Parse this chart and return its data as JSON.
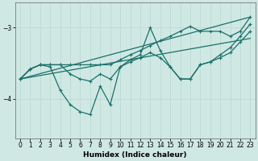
{
  "xlabel": "Humidex (Indice chaleur)",
  "background_color": "#cfe8e4",
  "grid_color": "#b8d8d2",
  "line_color": "#1a7068",
  "xlim": [
    -0.5,
    23.5
  ],
  "ylim": [
    -4.55,
    -2.65
  ],
  "yticks": [
    -4,
    -3
  ],
  "xticks": [
    0,
    1,
    2,
    3,
    4,
    5,
    6,
    7,
    8,
    9,
    10,
    11,
    12,
    13,
    14,
    15,
    16,
    17,
    18,
    19,
    20,
    21,
    22,
    23
  ],
  "line_upper_x": [
    0,
    1,
    2,
    3,
    4,
    5,
    6,
    7,
    8,
    9,
    10,
    11,
    12,
    13,
    14,
    15,
    16,
    17,
    18,
    19,
    20,
    21,
    22,
    23
  ],
  "line_upper_y": [
    -3.72,
    -3.58,
    -3.52,
    -3.52,
    -3.52,
    -3.52,
    -3.52,
    -3.52,
    -3.52,
    -3.52,
    -3.45,
    -3.38,
    -3.32,
    -3.25,
    -3.18,
    -3.12,
    -3.05,
    -2.98,
    -3.05,
    -3.05,
    -3.05,
    -3.12,
    -3.05,
    -2.85
  ],
  "line_lower_x": [
    0,
    1,
    2,
    3,
    4,
    5,
    6,
    7,
    8,
    9,
    10,
    11,
    12,
    13,
    14,
    15,
    16,
    17,
    18,
    19,
    20,
    21,
    22,
    23
  ],
  "line_lower_y": [
    -3.72,
    -3.58,
    -3.52,
    -3.52,
    -3.52,
    -3.65,
    -3.72,
    -3.75,
    -3.65,
    -3.72,
    -3.55,
    -3.48,
    -3.42,
    -3.35,
    -3.42,
    -3.55,
    -3.72,
    -3.72,
    -3.52,
    -3.48,
    -3.42,
    -3.35,
    -3.2,
    -3.05
  ],
  "line_zigzag_x": [
    0,
    1,
    2,
    3,
    4,
    5,
    6,
    7,
    8,
    9,
    10,
    11,
    12,
    13,
    14,
    15,
    16,
    17,
    18,
    19,
    20,
    21,
    22,
    23
  ],
  "line_zigzag_y": [
    -3.72,
    -3.58,
    -3.52,
    -3.55,
    -3.88,
    -4.08,
    -4.18,
    -4.22,
    -3.82,
    -4.08,
    -3.55,
    -3.45,
    -3.38,
    -3.0,
    -3.32,
    -3.55,
    -3.72,
    -3.72,
    -3.52,
    -3.48,
    -3.38,
    -3.28,
    -3.12,
    -2.95
  ],
  "line_trend1_x": [
    0,
    23
  ],
  "line_trend1_y": [
    -3.72,
    -2.85
  ],
  "line_trend2_x": [
    0,
    23
  ],
  "line_trend2_y": [
    -3.72,
    -3.15
  ]
}
